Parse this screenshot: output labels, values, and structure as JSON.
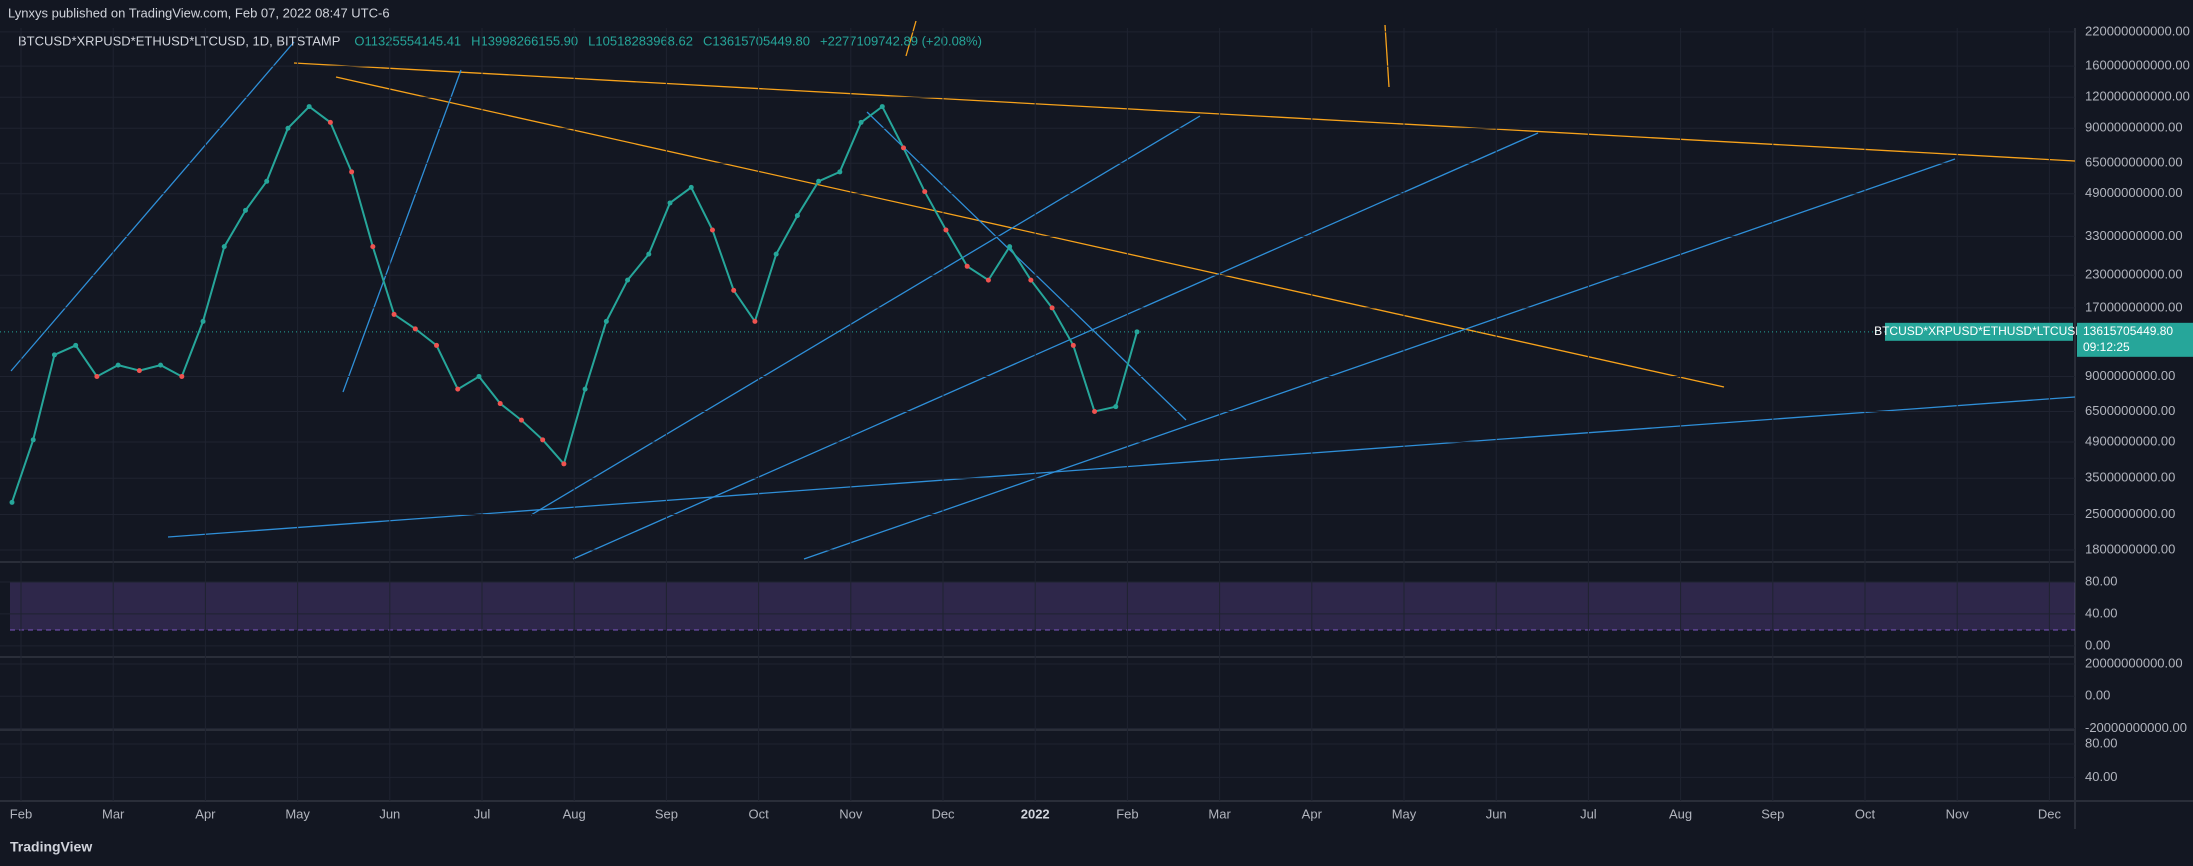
{
  "header": {
    "publisher": "Lynxys published on TradingView.com, Feb 07, 2022 08:47 UTC-6",
    "symbol": "BTCUSD*XRPUSD*ETHUSD*LTCUSD, 1D, BITSTAMP",
    "ohlc": [
      "O11325554145.41",
      "H13998266155.90",
      "L10518283968.62",
      "C13615705449.80",
      "+2277109742.89 (+20.08%)"
    ]
  },
  "chart_data": {
    "type": "line",
    "log": true,
    "grid": true,
    "color": "#26a69a",
    "x_labels": [
      "Feb",
      "Mar",
      "Apr",
      "May",
      "Jun",
      "Jul",
      "Aug",
      "Sep",
      "Oct",
      "Nov",
      "Dec",
      "2022",
      "Feb",
      "Mar",
      "Apr",
      "May",
      "Jun",
      "Jul",
      "Aug",
      "Sep",
      "Oct",
      "Nov",
      "Dec"
    ],
    "values": [
      2800000000,
      5000000000,
      11000000000,
      12000000000,
      9000000000,
      10000000000,
      9500000000,
      10000000000,
      9000000000,
      15000000000,
      30000000000,
      42000000000,
      55000000000,
      90000000000,
      110000000000,
      95000000000,
      60000000000,
      30000000000,
      16000000000,
      14000000000,
      12000000000,
      8000000000,
      9000000000,
      7000000000,
      6000000000,
      5000000000,
      4000000000,
      8000000000,
      15000000000,
      22000000000,
      28000000000,
      45000000000,
      52000000000,
      35000000000,
      20000000000,
      15000000000,
      28000000000,
      40000000000,
      55000000000,
      60000000000,
      95000000000,
      110000000000,
      75000000000,
      50000000000,
      35000000000,
      25000000000,
      22000000000,
      30000000000,
      22000000000,
      17000000000,
      12000000000,
      6500000000,
      6800000000,
      13615705449.8
    ],
    "ylim": [
      1640000000,
      228000000000
    ],
    "yticks": [
      {
        "value": 220000000000,
        "label": "220000000000.00"
      },
      {
        "value": 160000000000,
        "label": "160000000000.00"
      },
      {
        "value": 120000000000,
        "label": "120000000000.00"
      },
      {
        "value": 90000000000,
        "label": "90000000000.00"
      },
      {
        "value": 65000000000,
        "label": "65000000000.00"
      },
      {
        "value": 49000000000,
        "label": "49000000000.00"
      },
      {
        "value": 33000000000,
        "label": "33000000000.00"
      },
      {
        "value": 23000000000,
        "label": "23000000000.00"
      },
      {
        "value": 17000000000,
        "label": "17000000000.00"
      },
      {
        "value": 9000000000,
        "label": "9000000000.00"
      },
      {
        "value": 6500000000,
        "label": "6500000000.00"
      },
      {
        "value": 4900000000,
        "label": "4900000000.00"
      },
      {
        "value": 3500000000,
        "label": "3500000000.00"
      },
      {
        "value": 2500000000,
        "label": "2500000000.00"
      },
      {
        "value": 1800000000,
        "label": "1800000000.00"
      }
    ],
    "last_price": {
      "symbol": "BTCUSD*XRPUSD*ETHUSD*LTCUSD",
      "value": 13615705449.8,
      "label": "13615705449.80",
      "countdown": "09:12:25"
    },
    "panes": [
      {
        "ylim": [
          -14,
          100
        ],
        "yticks": [
          {
            "value": 80,
            "label": "80.00"
          },
          {
            "value": 40,
            "label": "40.00"
          },
          {
            "value": 0,
            "label": "0.00"
          }
        ]
      },
      {
        "ylim": [
          -20900000000,
          24300000000
        ],
        "yticks": [
          {
            "value": 20000000000,
            "label": "20000000000.00"
          },
          {
            "value": 0,
            "label": "0.00"
          },
          {
            "value": -20000000000,
            "label": "-20000000000.00"
          }
        ]
      },
      {
        "ylim": [
          11.7,
          96.7
        ],
        "yticks": [
          {
            "value": 80,
            "label": "80.00"
          },
          {
            "value": 40,
            "label": "40.00"
          }
        ]
      }
    ]
  },
  "footer": {
    "brand": "TradingView"
  }
}
